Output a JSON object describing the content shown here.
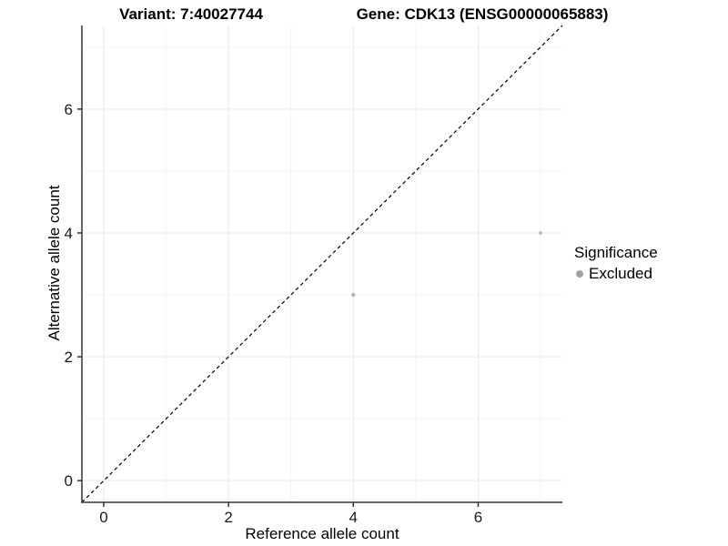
{
  "header": {
    "variant_title": "Variant: 7:40027744",
    "gene_title": "Gene: CDK13 (ENSG00000065883)"
  },
  "chart_data": {
    "type": "scatter",
    "xlabel": "Reference allele count",
    "ylabel": "Alternative allele count",
    "xlim": [
      -0.35,
      7.35
    ],
    "ylim": [
      -0.35,
      7.35
    ],
    "x_major_ticks": [
      0,
      2,
      4,
      6
    ],
    "y_major_ticks": [
      0,
      2,
      4,
      6
    ],
    "x_minor_gridlines": [
      1,
      3,
      5,
      7
    ],
    "y_minor_gridlines": [
      1,
      3,
      5,
      7
    ],
    "grid": "on",
    "legend_position": "right",
    "series": [
      {
        "name": "Excluded",
        "color": "#b9b9b9",
        "points": [
          {
            "x": 4,
            "y": 3,
            "r": 2.3
          },
          {
            "x": 7,
            "y": 4,
            "r": 1.9
          }
        ]
      }
    ],
    "identity_line": {
      "equation": "y = x",
      "style": "dashed",
      "color": "#000000"
    },
    "legend": {
      "title": "Significance",
      "items": [
        {
          "label": "Excluded",
          "color": "#a3a3a3"
        }
      ]
    },
    "colors": {
      "axis": "#333333",
      "tick_text": "#1a1a1a",
      "grid_major": "#e9e9e9",
      "grid_minor": "#f4f4f4"
    }
  }
}
